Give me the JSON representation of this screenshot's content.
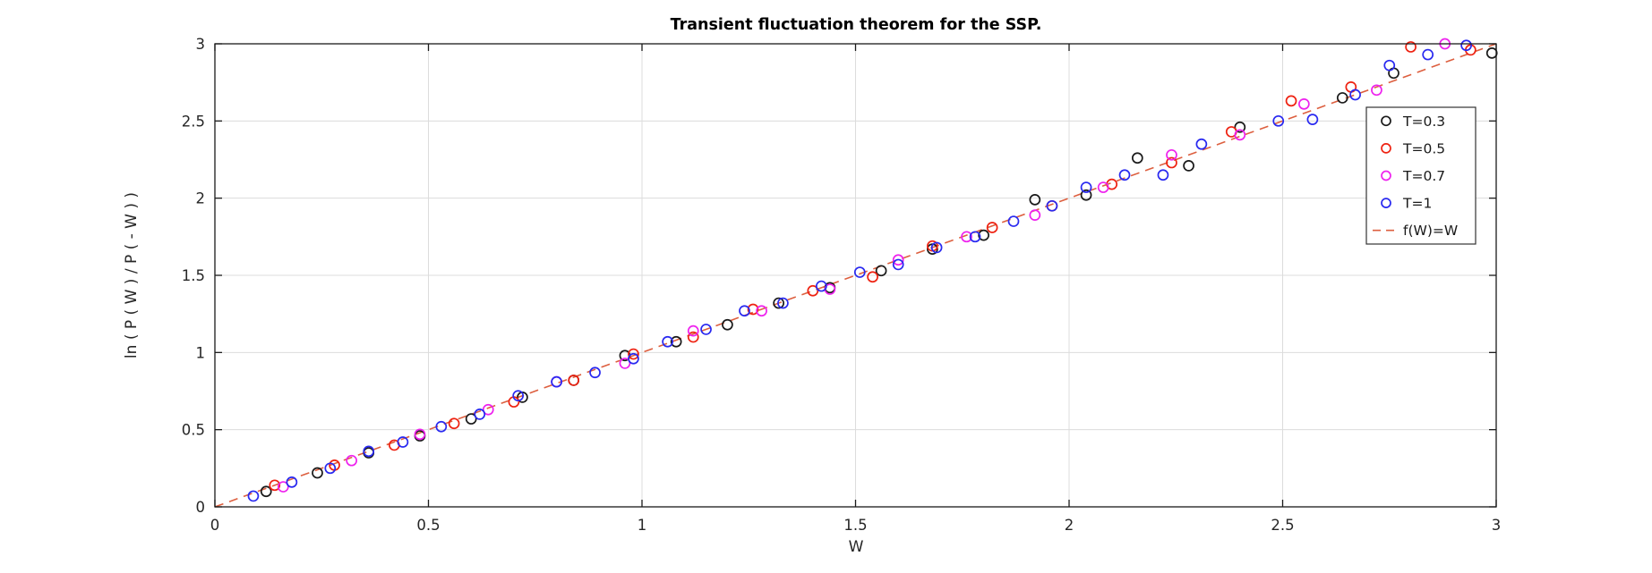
{
  "chart_data": {
    "type": "scatter",
    "title": "Transient fluctuation theorem for the SSP.",
    "xlabel": "W",
    "ylabel": "ln ( P ( W ) / P ( - W ) )",
    "xlim": [
      0,
      3
    ],
    "ylim": [
      0,
      3
    ],
    "xticks": [
      0,
      0.5,
      1,
      1.5,
      2,
      2.5,
      3
    ],
    "xtick_labels": [
      "0",
      "0.5",
      "1",
      "1.5",
      "2",
      "2.5",
      "3"
    ],
    "yticks": [
      0,
      0.5,
      1,
      1.5,
      2,
      2.5,
      3
    ],
    "ytick_labels": [
      "0",
      "0.5",
      "1",
      "1.5",
      "2",
      "2.5",
      "3"
    ],
    "grid": true,
    "legend": {
      "position": "upper-right-inside",
      "entries": [
        {
          "label": "T=0.3",
          "marker": "open-circle",
          "color": "#1a1a1a"
        },
        {
          "label": "T=0.5",
          "marker": "open-circle",
          "color": "#ee2211"
        },
        {
          "label": "T=0.7",
          "marker": "open-circle",
          "color": "#ee22ee"
        },
        {
          "label": "T=1",
          "marker": "open-circle",
          "color": "#2929f0"
        },
        {
          "label": "f(W)=W",
          "marker": "dashed-line",
          "color": "#dd5f3f"
        }
      ]
    },
    "series": [
      {
        "name": "T=0.3",
        "type": "scatter",
        "marker": "open-circle",
        "color": "#1a1a1a",
        "points": [
          [
            0.12,
            0.1
          ],
          [
            0.24,
            0.22
          ],
          [
            0.36,
            0.35
          ],
          [
            0.48,
            0.46
          ],
          [
            0.6,
            0.57
          ],
          [
            0.72,
            0.71
          ],
          [
            0.84,
            0.82
          ],
          [
            0.96,
            0.98
          ],
          [
            1.08,
            1.07
          ],
          [
            1.2,
            1.18
          ],
          [
            1.32,
            1.32
          ],
          [
            1.44,
            1.42
          ],
          [
            1.56,
            1.53
          ],
          [
            1.68,
            1.67
          ],
          [
            1.8,
            1.76
          ],
          [
            1.92,
            1.99
          ],
          [
            2.04,
            2.02
          ],
          [
            2.16,
            2.26
          ],
          [
            2.28,
            2.21
          ],
          [
            2.4,
            2.46
          ],
          [
            2.64,
            2.65
          ],
          [
            2.76,
            2.81
          ],
          [
            2.99,
            2.94
          ]
        ]
      },
      {
        "name": "T=0.5",
        "type": "scatter",
        "marker": "open-circle",
        "color": "#ee2211",
        "points": [
          [
            0.14,
            0.14
          ],
          [
            0.28,
            0.27
          ],
          [
            0.42,
            0.4
          ],
          [
            0.56,
            0.54
          ],
          [
            0.7,
            0.68
          ],
          [
            0.84,
            0.82
          ],
          [
            0.98,
            0.99
          ],
          [
            1.12,
            1.1
          ],
          [
            1.26,
            1.28
          ],
          [
            1.4,
            1.4
          ],
          [
            1.54,
            1.49
          ],
          [
            1.68,
            1.69
          ],
          [
            1.82,
            1.81
          ],
          [
            1.96,
            1.95
          ],
          [
            2.1,
            2.09
          ],
          [
            2.24,
            2.23
          ],
          [
            2.38,
            2.43
          ],
          [
            2.52,
            2.63
          ],
          [
            2.66,
            2.72
          ],
          [
            2.8,
            2.98
          ],
          [
            2.94,
            2.96
          ]
        ]
      },
      {
        "name": "T=0.7",
        "type": "scatter",
        "marker": "open-circle",
        "color": "#ee22ee",
        "points": [
          [
            0.16,
            0.13
          ],
          [
            0.32,
            0.3
          ],
          [
            0.48,
            0.47
          ],
          [
            0.64,
            0.63
          ],
          [
            0.8,
            0.81
          ],
          [
            0.96,
            0.93
          ],
          [
            1.12,
            1.14
          ],
          [
            1.28,
            1.27
          ],
          [
            1.44,
            1.41
          ],
          [
            1.6,
            1.6
          ],
          [
            1.76,
            1.75
          ],
          [
            1.92,
            1.89
          ],
          [
            2.08,
            2.07
          ],
          [
            2.24,
            2.28
          ],
          [
            2.4,
            2.41
          ],
          [
            2.55,
            2.61
          ],
          [
            2.72,
            2.7
          ],
          [
            2.88,
            3.0
          ]
        ]
      },
      {
        "name": "T=1",
        "type": "scatter",
        "marker": "open-circle",
        "color": "#2929f0",
        "points": [
          [
            0.09,
            0.07
          ],
          [
            0.18,
            0.16
          ],
          [
            0.27,
            0.25
          ],
          [
            0.36,
            0.36
          ],
          [
            0.44,
            0.42
          ],
          [
            0.53,
            0.52
          ],
          [
            0.62,
            0.6
          ],
          [
            0.71,
            0.72
          ],
          [
            0.8,
            0.81
          ],
          [
            0.89,
            0.87
          ],
          [
            0.98,
            0.96
          ],
          [
            1.06,
            1.07
          ],
          [
            1.15,
            1.15
          ],
          [
            1.24,
            1.27
          ],
          [
            1.33,
            1.32
          ],
          [
            1.42,
            1.43
          ],
          [
            1.51,
            1.52
          ],
          [
            1.6,
            1.57
          ],
          [
            1.69,
            1.68
          ],
          [
            1.78,
            1.75
          ],
          [
            1.87,
            1.85
          ],
          [
            1.96,
            1.95
          ],
          [
            2.04,
            2.07
          ],
          [
            2.13,
            2.15
          ],
          [
            2.22,
            2.15
          ],
          [
            2.31,
            2.35
          ],
          [
            2.49,
            2.5
          ],
          [
            2.57,
            2.51
          ],
          [
            2.67,
            2.67
          ],
          [
            2.75,
            2.86
          ],
          [
            2.84,
            2.93
          ],
          [
            2.93,
            2.99
          ]
        ]
      },
      {
        "name": "f(W)=W",
        "type": "line",
        "linestyle": "dashed",
        "color": "#dd5f3f",
        "points": [
          [
            0,
            0
          ],
          [
            3,
            3
          ]
        ]
      }
    ],
    "colors": {
      "grid": "#dcdcdc",
      "axis": "#1a1a1a",
      "tick_label": "#262626",
      "background": "#ffffff"
    }
  }
}
